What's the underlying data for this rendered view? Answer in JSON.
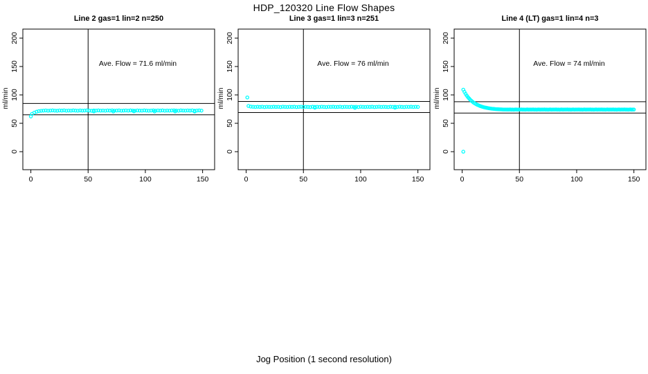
{
  "figure": {
    "title": "HDP_120320  Line Flow Shapes",
    "xlabel": "Jog Position (1 second resolution)"
  },
  "colors": {
    "point": "#00FFFF",
    "axis": "#000000",
    "background": "#FFFFFF"
  },
  "chart_data": [
    {
      "type": "scatter",
      "title": "Line 2 gas=1 lin=2 n=250",
      "ylabel": "ml/min",
      "annotation": "Ave. Flow =  71.6  ml/min",
      "ave_flow": 71.6,
      "x_ticks": [
        0,
        50,
        100,
        150
      ],
      "y_ticks": [
        0,
        50,
        100,
        150,
        200
      ],
      "x_range": [
        -7,
        160.5
      ],
      "y_range": [
        -31.7,
        215.9
      ],
      "vline_x": 50,
      "hlines": [
        85,
        65
      ],
      "points_x_start": 1,
      "points_x_step": 2,
      "points_y": [
        66.5,
        68.8,
        70.4,
        71.4,
        72,
        72.3,
        72.6,
        72.2,
        72.5,
        72.7,
        72.3,
        72.1,
        72.6,
        72.4,
        72.8,
        72.2,
        72.5,
        72.3,
        72.7,
        72.4,
        72.2,
        72.6,
        72.3,
        72.5,
        72.8,
        72.4,
        72.1,
        72.6,
        72.4,
        72.7,
        72.3,
        72.5,
        72.2,
        72.6,
        72.4,
        72.8,
        72.3,
        72.5,
        72.7,
        72.2,
        72.4,
        72.6,
        72.3,
        72.7,
        72.5,
        72.2,
        72.6,
        72.4,
        72.3,
        72.7,
        72.4,
        72.2,
        72.5,
        72.8,
        72.3,
        72.6,
        72.4,
        72.7,
        72.2,
        72.5,
        72.3,
        72.6,
        72.8,
        72.4,
        72.2,
        72.7,
        72.5,
        72.3,
        72.6,
        72.4,
        72.8,
        72.2,
        72.5,
        72.7,
        72.3
      ],
      "extra_points": [
        [
          0,
          62
        ],
        [
          55,
          70.9
        ],
        [
          72,
          70.7
        ],
        [
          90,
          71
        ],
        [
          108,
          70.8
        ],
        [
          126,
          70.9
        ],
        [
          143,
          70.7
        ]
      ]
    },
    {
      "type": "scatter",
      "title": "Line 3 gas=1 lin=3 n=251",
      "ylabel": "ml/min",
      "annotation": "Ave. Flow =  76  ml/min",
      "ave_flow": 76,
      "x_ticks": [
        0,
        50,
        100,
        150
      ],
      "y_ticks": [
        0,
        50,
        100,
        150,
        200
      ],
      "x_range": [
        -7,
        160.5
      ],
      "y_range": [
        -31.7,
        215.9
      ],
      "vline_x": 50,
      "hlines": [
        88.5,
        69
      ],
      "points_x_start": 2,
      "points_x_step": 2,
      "points_y": [
        80.5,
        79.4,
        79,
        78.7,
        79.1,
        78.8,
        79.2,
        78.6,
        79,
        78.9,
        78.7,
        79.1,
        78.8,
        79,
        78.6,
        79.2,
        78.9,
        78.7,
        79,
        78.8,
        79.1,
        78.6,
        78.9,
        79.2,
        78.7,
        79,
        78.8,
        78.6,
        79.1,
        78.9,
        79,
        78.7,
        79.2,
        78.8,
        78.6,
        79,
        78.9,
        79.1,
        78.7,
        78.8,
        79.2,
        78.6,
        79,
        78.9,
        78.7,
        79.1,
        78.8,
        79,
        78.6,
        79.2,
        78.9,
        78.7,
        79,
        78.8,
        79.1,
        78.6,
        78.9,
        79.2,
        78.7,
        79,
        78.8,
        78.6,
        79.1,
        78.9,
        79,
        78.7,
        79.2,
        78.8,
        78.6,
        79,
        78.9,
        79.1,
        78.7,
        79,
        78.8
      ],
      "extra_points": [
        [
          1,
          95.5
        ],
        [
          60,
          77.5
        ],
        [
          95,
          77.3
        ],
        [
          130,
          77.6
        ]
      ]
    },
    {
      "type": "scatter",
      "title": "Line 4 (LT) gas=1 lin=4 n=3",
      "ylabel": "ml/min",
      "annotation": "Ave. Flow =  74  ml/min",
      "ave_flow": 74,
      "x_ticks": [
        0,
        50,
        100,
        150
      ],
      "y_ticks": [
        0,
        50,
        100,
        150,
        200
      ],
      "x_range": [
        -7,
        160.5
      ],
      "y_range": [
        -31.7,
        215.9
      ],
      "vline_x": 50,
      "hlines": [
        88,
        68
      ],
      "points_x_start": 1,
      "points_x_step": 1,
      "points_y": [
        109.2,
        105.3,
        101.8,
        98.7,
        96.1,
        93.8,
        91.6,
        89.7,
        88,
        86.4,
        85.1,
        83.9,
        82.8,
        81.9,
        81,
        80.2,
        79.5,
        78.9,
        78.3,
        77.8,
        77.4,
        77,
        76.6,
        76.3,
        76,
        75.7,
        75.5,
        75.3,
        75.1,
        74.9,
        74.8,
        74.7,
        74.6,
        74.5,
        74.4,
        74.3,
        74.3,
        74.3,
        74.2,
        74.2,
        74.2,
        74.4,
        74.1,
        74.3,
        74,
        74.2,
        74.4,
        74.1,
        74.3,
        74.2,
        74.2,
        74.4,
        74.1,
        74.3,
        74,
        74.2,
        74.4,
        74.1,
        74.3,
        74.2,
        74.2,
        74.4,
        74.1,
        74.3,
        74,
        74.2,
        74.4,
        74.1,
        74.3,
        74.2,
        74.2,
        74.4,
        74.1,
        74.3,
        74,
        74.2,
        74.4,
        74.1,
        74.3,
        74.2,
        74.2,
        74.4,
        74.1,
        74.3,
        74,
        74.2,
        74.4,
        74.1,
        74.3,
        74.2,
        74.2,
        74.4,
        74.1,
        74.3,
        74,
        74.2,
        74.4,
        74.1,
        74.3,
        74.2,
        74.2,
        74.4,
        74.1,
        74.3,
        74,
        74.2,
        74.4,
        74.1,
        74.3,
        74.2,
        74.2,
        74.4,
        74.1,
        74.3,
        74,
        74.2,
        74.4,
        74.1,
        74.3,
        74.2,
        74.2,
        74.4,
        74.1,
        74.3,
        74,
        74.2,
        74.4,
        74.1,
        74.3,
        74.2,
        74.2,
        74.4,
        74.1,
        74.3,
        74,
        74.2,
        74.4,
        74.1,
        74.3,
        74.2,
        74.2,
        74.4,
        74.1,
        74.3,
        74,
        74.2,
        74.4,
        74.1,
        74.3,
        74.2
      ],
      "extra_points": [
        [
          1,
          0
        ]
      ]
    }
  ]
}
